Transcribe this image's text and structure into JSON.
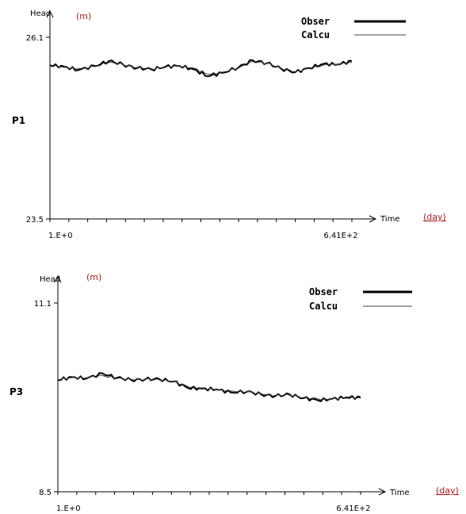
{
  "chart_data": [
    {
      "type": "line",
      "panel_label": "P1",
      "ylabel": "Head",
      "y_unit": "(m)",
      "xlabel": "Time",
      "x_unit": "(day)",
      "ylim": [
        23.5,
        26.1
      ],
      "xlim": [
        1,
        641
      ],
      "y_tick_labels": [
        "26.1",
        "23.5"
      ],
      "x_tick_labels": [
        "1.E+0",
        "6.41E+2"
      ],
      "legend": {
        "position": "top-right",
        "entries": [
          "Obser",
          "Calcu"
        ]
      },
      "series": [
        {
          "name": "Obser",
          "color": "#000000",
          "x": [
            1,
            31,
            61,
            96,
            126,
            156,
            186,
            216,
            246,
            276,
            306,
            336,
            366,
            401,
            431,
            461,
            491,
            521,
            551,
            581,
            611,
            641
          ],
          "y": [
            25.7,
            25.68,
            25.63,
            25.69,
            25.76,
            25.71,
            25.66,
            25.64,
            25.68,
            25.69,
            25.64,
            25.54,
            25.59,
            25.67,
            25.77,
            25.73,
            25.65,
            25.6,
            25.66,
            25.72,
            25.71,
            25.76
          ]
        },
        {
          "name": "Calcu",
          "color": "#444444",
          "x": [
            1,
            31,
            61,
            96,
            126,
            156,
            186,
            216,
            246,
            276,
            306,
            336,
            366,
            401,
            431,
            461,
            491,
            521,
            551,
            581,
            611,
            641
          ],
          "y": [
            25.69,
            25.67,
            25.65,
            25.68,
            25.74,
            25.71,
            25.67,
            25.65,
            25.67,
            25.69,
            25.66,
            25.57,
            25.6,
            25.66,
            25.75,
            25.73,
            25.66,
            25.61,
            25.65,
            25.7,
            25.71,
            25.74
          ]
        }
      ]
    },
    {
      "type": "line",
      "panel_label": "P3",
      "ylabel": "Head",
      "y_unit": "(m)",
      "xlabel": "Time",
      "x_unit": "(day)",
      "ylim": [
        8.5,
        11.1
      ],
      "xlim": [
        1,
        641
      ],
      "y_tick_labels": [
        "11.1",
        "8.5"
      ],
      "x_tick_labels": [
        "1.E+0",
        "6.41E+2"
      ],
      "legend": {
        "position": "top-right",
        "entries": [
          "Obser",
          "Calcu"
        ]
      },
      "series": [
        {
          "name": "Obser",
          "color": "#000000",
          "x": [
            1,
            31,
            61,
            96,
            126,
            156,
            186,
            216,
            246,
            276,
            306,
            336,
            366,
            401,
            431,
            461,
            491,
            521,
            551,
            581,
            611,
            641
          ],
          "y": [
            10.04,
            10.08,
            10.06,
            10.13,
            10.07,
            10.04,
            10.05,
            10.05,
            10.02,
            9.93,
            9.92,
            9.91,
            9.87,
            9.88,
            9.84,
            9.82,
            9.84,
            9.79,
            9.76,
            9.78,
            9.8,
            9.8
          ]
        },
        {
          "name": "Calcu",
          "color": "#444444",
          "x": [
            1,
            31,
            61,
            96,
            126,
            156,
            186,
            216,
            246,
            276,
            306,
            336,
            366,
            401,
            431,
            461,
            491,
            521,
            551,
            581,
            611,
            641
          ],
          "y": [
            10.05,
            10.07,
            10.07,
            10.1,
            10.06,
            10.05,
            10.05,
            10.04,
            10.02,
            9.95,
            9.93,
            9.91,
            9.89,
            9.88,
            9.85,
            9.83,
            9.83,
            9.8,
            9.78,
            9.78,
            9.79,
            9.79
          ]
        }
      ]
    }
  ]
}
